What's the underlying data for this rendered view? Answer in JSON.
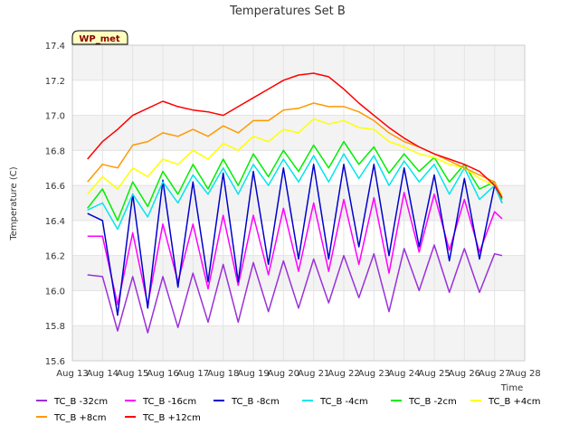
{
  "chart_data": {
    "type": "line",
    "title": "Temperatures Set B",
    "xlabel": "Time",
    "ylabel": "Temperature (C)",
    "ylim": [
      15.6,
      17.4
    ],
    "xlim": [
      "Aug 13",
      "Aug 28"
    ],
    "x_ticks": [
      "Aug 13",
      "Aug 14",
      "Aug 15",
      "Aug 16",
      "Aug 17",
      "Aug 18",
      "Aug 19",
      "Aug 20",
      "Aug 21",
      "Aug 22",
      "Aug 23",
      "Aug 24",
      "Aug 25",
      "Aug 26",
      "Aug 27",
      "Aug 28"
    ],
    "y_ticks": [
      "15.6",
      "15.8",
      "16.0",
      "16.2",
      "16.4",
      "16.6",
      "16.8",
      "17.0",
      "17.2",
      "17.4"
    ],
    "grid": true,
    "banded_background": true,
    "annotation": {
      "text": "WP_met",
      "bg": "#ffffc0",
      "color": "#8b0000"
    },
    "legend": {
      "position": "bottom"
    },
    "x": [
      "Aug 13 12:00",
      "Aug 14 00:00",
      "Aug 14 12:00",
      "Aug 15 00:00",
      "Aug 15 12:00",
      "Aug 16 00:00",
      "Aug 16 12:00",
      "Aug 17 00:00",
      "Aug 17 12:00",
      "Aug 18 00:00",
      "Aug 18 12:00",
      "Aug 19 00:00",
      "Aug 19 12:00",
      "Aug 20 00:00",
      "Aug 20 12:00",
      "Aug 21 00:00",
      "Aug 21 12:00",
      "Aug 22 00:00",
      "Aug 22 12:00",
      "Aug 23 00:00",
      "Aug 23 12:00",
      "Aug 24 00:00",
      "Aug 24 12:00",
      "Aug 25 00:00",
      "Aug 25 12:00",
      "Aug 26 00:00",
      "Aug 26 12:00",
      "Aug 27 00:00",
      "Aug 27 06:00"
    ],
    "series": [
      {
        "name": "TC_B -32cm",
        "color": "#9b30d9",
        "values": [
          16.09,
          16.08,
          15.77,
          16.08,
          15.76,
          16.08,
          15.79,
          16.1,
          15.82,
          16.15,
          15.82,
          16.16,
          15.88,
          16.17,
          15.9,
          16.18,
          15.93,
          16.2,
          15.96,
          16.21,
          15.88,
          16.24,
          16.0,
          16.26,
          15.99,
          16.24,
          15.99,
          16.21,
          16.2
        ]
      },
      {
        "name": "TC_B -16cm",
        "color": "#ff00ff",
        "values": [
          16.31,
          16.31,
          15.92,
          16.33,
          15.92,
          16.38,
          16.05,
          16.38,
          16.01,
          16.43,
          16.03,
          16.43,
          16.09,
          16.47,
          16.11,
          16.5,
          16.11,
          16.52,
          16.15,
          16.53,
          16.1,
          16.56,
          16.22,
          16.55,
          16.23,
          16.52,
          16.22,
          16.45,
          16.41
        ]
      },
      {
        "name": "TC_B -8cm",
        "color": "#0000cc",
        "values": [
          16.44,
          16.4,
          15.86,
          16.55,
          15.9,
          16.63,
          16.02,
          16.62,
          16.05,
          16.67,
          16.05,
          16.68,
          16.15,
          16.7,
          16.18,
          16.72,
          16.18,
          16.72,
          16.25,
          16.72,
          16.2,
          16.7,
          16.25,
          16.66,
          16.17,
          16.64,
          16.18,
          16.6,
          16.5
        ]
      },
      {
        "name": "TC_B -4cm",
        "color": "#00e5ee",
        "values": [
          16.46,
          16.5,
          16.35,
          16.55,
          16.42,
          16.62,
          16.5,
          16.66,
          16.55,
          16.7,
          16.55,
          16.72,
          16.6,
          16.75,
          16.62,
          16.77,
          16.62,
          16.78,
          16.64,
          16.77,
          16.6,
          16.74,
          16.62,
          16.72,
          16.55,
          16.7,
          16.52,
          16.6,
          16.5
        ]
      },
      {
        "name": "TC_B -2cm",
        "color": "#00ee00",
        "values": [
          16.47,
          16.58,
          16.4,
          16.62,
          16.48,
          16.68,
          16.55,
          16.72,
          16.58,
          16.75,
          16.6,
          16.78,
          16.65,
          16.8,
          16.68,
          16.83,
          16.7,
          16.85,
          16.72,
          16.82,
          16.67,
          16.78,
          16.68,
          16.76,
          16.62,
          16.72,
          16.58,
          16.62,
          16.52
        ]
      },
      {
        "name": "TC_B +4cm",
        "color": "#ffff00",
        "values": [
          16.55,
          16.65,
          16.58,
          16.7,
          16.65,
          16.75,
          16.72,
          16.8,
          16.75,
          16.84,
          16.8,
          16.88,
          16.85,
          16.92,
          16.9,
          16.98,
          16.95,
          16.97,
          16.93,
          16.92,
          16.85,
          16.82,
          16.78,
          16.76,
          16.72,
          16.7,
          16.64,
          16.6,
          16.55
        ]
      },
      {
        "name": "TC_B +8cm",
        "color": "#ff9900",
        "values": [
          16.62,
          16.72,
          16.7,
          16.83,
          16.85,
          16.9,
          16.88,
          16.92,
          16.88,
          16.94,
          16.9,
          16.97,
          16.97,
          17.03,
          17.04,
          17.07,
          17.05,
          17.05,
          17.02,
          16.97,
          16.9,
          16.85,
          16.82,
          16.78,
          16.74,
          16.7,
          16.66,
          16.62,
          16.53
        ]
      },
      {
        "name": "TC_B +12cm",
        "color": "#ff0000",
        "values": [
          16.75,
          16.85,
          16.92,
          17.0,
          17.04,
          17.08,
          17.05,
          17.03,
          17.02,
          17.0,
          17.05,
          17.1,
          17.15,
          17.2,
          17.23,
          17.24,
          17.22,
          17.15,
          17.07,
          17.0,
          16.93,
          16.87,
          16.82,
          16.78,
          16.75,
          16.72,
          16.68,
          16.6,
          16.53
        ]
      }
    ]
  }
}
